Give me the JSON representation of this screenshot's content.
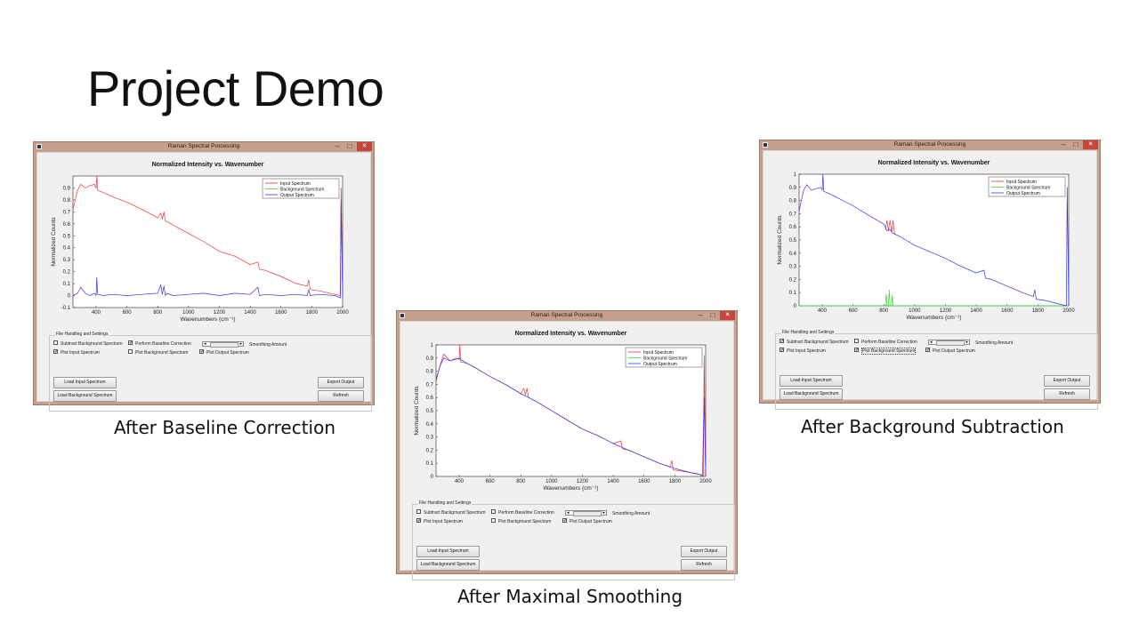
{
  "slide": {
    "title": "Project Demo",
    "captions": {
      "baseline": "After Baseline Correction",
      "smoothing": "After Maximal Smoothing",
      "background": "After Background Subtraction"
    }
  },
  "windows": [
    {
      "id": "baseline",
      "title": "Raman Spectral Processing",
      "checkboxes": {
        "subtract_bg": {
          "label": "Subtract Background Spectrum",
          "checked": false
        },
        "baseline": {
          "label": "Perform Baseline Correction",
          "checked": true
        },
        "plot_input": {
          "label": "Plot Input Spectrum",
          "checked": true
        },
        "plot_bg": {
          "label": "Plot Background Spectrum",
          "checked": false
        },
        "plot_output": {
          "label": "Plot Output Spectrum",
          "checked": true
        }
      }
    },
    {
      "id": "smoothing",
      "title": "Raman Spectral Processing",
      "checkboxes": {
        "subtract_bg": {
          "label": "Subtract Background Spectrum",
          "checked": false
        },
        "baseline": {
          "label": "Perform Baseline Correction",
          "checked": false
        },
        "plot_input": {
          "label": "Plot Input Spectrum",
          "checked": true
        },
        "plot_bg": {
          "label": "Plot Background Spectrum",
          "checked": false
        },
        "plot_output": {
          "label": "Plot Output Spectrum",
          "checked": true
        }
      }
    },
    {
      "id": "background",
      "title": "Raman Spectral Processing",
      "checkboxes": {
        "subtract_bg": {
          "label": "Subtract Background Spectrum",
          "checked": true
        },
        "baseline": {
          "label": "Perform Baseline Correction",
          "checked": false
        },
        "plot_input": {
          "label": "Plot Input Spectrum",
          "checked": true
        },
        "plot_bg": {
          "label": "Plot Background Spectrum",
          "checked": true
        },
        "plot_output": {
          "label": "Plot Output Spectrum",
          "checked": true
        }
      }
    }
  ],
  "ui": {
    "panel_title": "File Handling and Settings",
    "smoothing_label": "Smoothing Amount",
    "buttons": {
      "load_input": "Load Input Spectrum",
      "load_bg": "Load Background Spectrum",
      "export": "Export Output",
      "refresh": "Refresh"
    },
    "slider_left": "◂",
    "slider_right": "▸",
    "minimize": "–",
    "maximize": "□",
    "close": "✕"
  },
  "colors": {
    "input": "#ee3333",
    "background": "#33dd33",
    "output": "#3333ee",
    "overlap": "#8844aa"
  },
  "chart_data": [
    {
      "type": "line",
      "panel": "baseline",
      "title": "Normalized Intensity vs. Wavenumber",
      "xlabel": "Wavenumbers (cm⁻¹)",
      "ylabel": "Normalized Counts",
      "xlim": [
        250,
        2000
      ],
      "ylim": [
        -0.1,
        1.0
      ],
      "xticks": [
        "400",
        "600",
        "800",
        "1000",
        "1200",
        "1400",
        "1600",
        "1800",
        "2000"
      ],
      "yticks": [
        "-0.1",
        "0",
        "0.1",
        "0.2",
        "0.3",
        "0.4",
        "0.5",
        "0.6",
        "0.7",
        "0.8",
        "0.9"
      ],
      "legend": [
        "Input Spectrum",
        "Background Spectrum",
        "Output Spectrum"
      ],
      "series": [
        {
          "name": "Input Spectrum",
          "color": "#ee3333",
          "x": [
            250,
            280,
            300,
            330,
            360,
            390,
            400,
            405,
            410,
            450,
            500,
            600,
            700,
            800,
            820,
            830,
            840,
            850,
            860,
            900,
            1000,
            1100,
            1200,
            1300,
            1400,
            1450,
            1460,
            1500,
            1600,
            1700,
            1770,
            1780,
            1790,
            1850,
            1950,
            1985,
            1990,
            2000
          ],
          "y": [
            0.72,
            0.88,
            0.93,
            0.9,
            0.92,
            0.93,
            0.9,
            1.0,
            0.88,
            0.86,
            0.83,
            0.78,
            0.72,
            0.65,
            0.69,
            0.64,
            0.7,
            0.62,
            0.62,
            0.59,
            0.52,
            0.45,
            0.37,
            0.33,
            0.26,
            0.28,
            0.22,
            0.21,
            0.16,
            0.1,
            0.08,
            0.13,
            0.05,
            0.04,
            0.01,
            0.0,
            0.9,
            0.0
          ]
        },
        {
          "name": "Output Spectrum",
          "color": "#3333ee",
          "x": [
            250,
            280,
            300,
            330,
            360,
            390,
            400,
            405,
            410,
            450,
            500,
            600,
            700,
            800,
            820,
            830,
            840,
            850,
            860,
            900,
            1000,
            1100,
            1200,
            1300,
            1400,
            1450,
            1460,
            1500,
            1600,
            1700,
            1770,
            1780,
            1790,
            1850,
            1950,
            1985,
            1990,
            2000
          ],
          "y": [
            0.0,
            0.02,
            0.07,
            0.02,
            0.0,
            0.02,
            0.0,
            0.15,
            0.01,
            0.0,
            0.01,
            0.0,
            0.01,
            0.02,
            0.09,
            0.01,
            0.08,
            0.0,
            0.02,
            0.0,
            0.01,
            0.02,
            0.0,
            0.02,
            0.01,
            0.07,
            0.0,
            0.01,
            0.0,
            0.01,
            0.0,
            0.05,
            0.0,
            0.01,
            0.0,
            -0.02,
            0.8,
            -0.02
          ]
        }
      ]
    },
    {
      "type": "line",
      "panel": "smoothing",
      "title": "Normalized Intensity vs. Wavenumber",
      "xlabel": "Wavenumbers (cm⁻¹)",
      "ylabel": "Normalized Counts",
      "xlim": [
        250,
        2000
      ],
      "ylim": [
        0,
        1.0
      ],
      "xticks": [
        "400",
        "600",
        "800",
        "1000",
        "1200",
        "1400",
        "1600",
        "1800",
        "2000"
      ],
      "yticks": [
        "0",
        "0.1",
        "0.2",
        "0.3",
        "0.4",
        "0.5",
        "0.6",
        "0.7",
        "0.8",
        "0.9",
        "1"
      ],
      "legend": [
        "Input Spectrum",
        "Background Spectrum",
        "Output Spectrum"
      ],
      "series": [
        {
          "name": "Input Spectrum",
          "color": "#ee3333",
          "x": [
            250,
            280,
            300,
            340,
            380,
            400,
            405,
            410,
            450,
            500,
            600,
            700,
            800,
            820,
            830,
            840,
            850,
            900,
            1000,
            1100,
            1200,
            1300,
            1400,
            1450,
            1460,
            1500,
            1600,
            1700,
            1770,
            1780,
            1790,
            1850,
            1950,
            1985,
            1990,
            2000
          ],
          "y": [
            0.72,
            0.86,
            0.93,
            0.88,
            0.9,
            0.89,
            1.0,
            0.87,
            0.86,
            0.83,
            0.76,
            0.7,
            0.63,
            0.67,
            0.62,
            0.67,
            0.6,
            0.57,
            0.5,
            0.43,
            0.36,
            0.31,
            0.25,
            0.27,
            0.21,
            0.2,
            0.15,
            0.1,
            0.07,
            0.12,
            0.05,
            0.04,
            0.02,
            0.0,
            0.92,
            0.0
          ]
        },
        {
          "name": "Output Spectrum",
          "color": "#3333ee",
          "x": [
            250,
            280,
            300,
            340,
            380,
            400,
            410,
            450,
            500,
            600,
            700,
            800,
            900,
            1000,
            1100,
            1200,
            1300,
            1400,
            1500,
            1600,
            1700,
            1800,
            1900,
            1980,
            1990,
            2000
          ],
          "y": [
            0.74,
            0.85,
            0.9,
            0.88,
            0.89,
            0.9,
            0.89,
            0.86,
            0.83,
            0.76,
            0.7,
            0.63,
            0.57,
            0.5,
            0.43,
            0.36,
            0.31,
            0.25,
            0.2,
            0.15,
            0.1,
            0.06,
            0.03,
            0.01,
            0.6,
            0.0
          ]
        }
      ]
    },
    {
      "type": "line",
      "panel": "background",
      "title": "Normalized Intensity vs. Wavenumber",
      "xlabel": "Wavenumbers (cm⁻¹)",
      "ylabel": "Normalized Counts",
      "xlim": [
        250,
        2000
      ],
      "ylim": [
        0,
        1.0
      ],
      "xticks": [
        "400",
        "600",
        "800",
        "1000",
        "1200",
        "1400",
        "1600",
        "1800",
        "2000"
      ],
      "yticks": [
        "0",
        "0.1",
        "0.2",
        "0.3",
        "0.4",
        "0.5",
        "0.6",
        "0.7",
        "0.8",
        "0.9",
        "1"
      ],
      "legend": [
        "Input Spectrum",
        "Background Spectrum",
        "Output Spectrum"
      ],
      "series": [
        {
          "name": "Input Spectrum",
          "color": "#ee3333",
          "x": [
            810,
            820,
            830,
            840,
            850,
            860,
            870,
            880
          ],
          "y": [
            0.58,
            0.65,
            0.57,
            0.65,
            0.56,
            0.65,
            0.55,
            0.54
          ]
        },
        {
          "name": "Background Spectrum",
          "color": "#33dd33",
          "x": [
            250,
            800,
            810,
            815,
            820,
            830,
            835,
            840,
            850,
            855,
            860,
            870,
            2000
          ],
          "y": [
            0.0,
            0.0,
            0.0,
            0.09,
            0.0,
            0.0,
            0.12,
            0.0,
            0.0,
            0.08,
            0.0,
            0.0,
            0.0
          ]
        },
        {
          "name": "Output Spectrum",
          "color": "#3333ee",
          "x": [
            250,
            280,
            300,
            330,
            360,
            390,
            400,
            405,
            410,
            450,
            500,
            600,
            700,
            800,
            820,
            840,
            860,
            900,
            1000,
            1100,
            1200,
            1300,
            1400,
            1450,
            1460,
            1500,
            1600,
            1700,
            1770,
            1780,
            1790,
            1850,
            1950,
            1985,
            1990,
            2000
          ],
          "y": [
            0.72,
            0.88,
            0.92,
            0.88,
            0.89,
            0.9,
            0.88,
            1.0,
            0.87,
            0.85,
            0.82,
            0.76,
            0.69,
            0.62,
            0.57,
            0.58,
            0.55,
            0.53,
            0.46,
            0.41,
            0.36,
            0.3,
            0.25,
            0.27,
            0.21,
            0.2,
            0.15,
            0.1,
            0.07,
            0.12,
            0.05,
            0.04,
            0.01,
            0.0,
            0.9,
            0.0
          ]
        }
      ]
    }
  ]
}
